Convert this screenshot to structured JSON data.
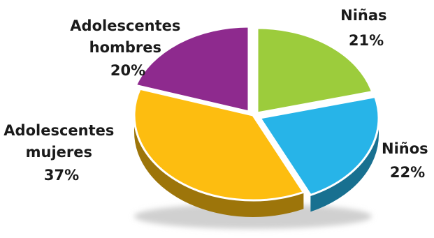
{
  "chart_data": {
    "type": "pie",
    "slices": [
      {
        "label_lines": [
          "Niñas"
        ],
        "pct_text": "21%",
        "value": 21,
        "color": "#9ccc3c"
      },
      {
        "label_lines": [
          "Niños"
        ],
        "pct_text": "22%",
        "value": 22,
        "color": "#27b4e8"
      },
      {
        "label_lines": [
          "Adolescentes",
          "mujeres"
        ],
        "pct_text": "37%",
        "value": 37,
        "color": "#fdbd10"
      },
      {
        "label_lines": [
          "Adolescentes",
          "hombres"
        ],
        "pct_text": "20%",
        "value": 20,
        "color": "#8e2a8e"
      }
    ],
    "legend": "none"
  }
}
